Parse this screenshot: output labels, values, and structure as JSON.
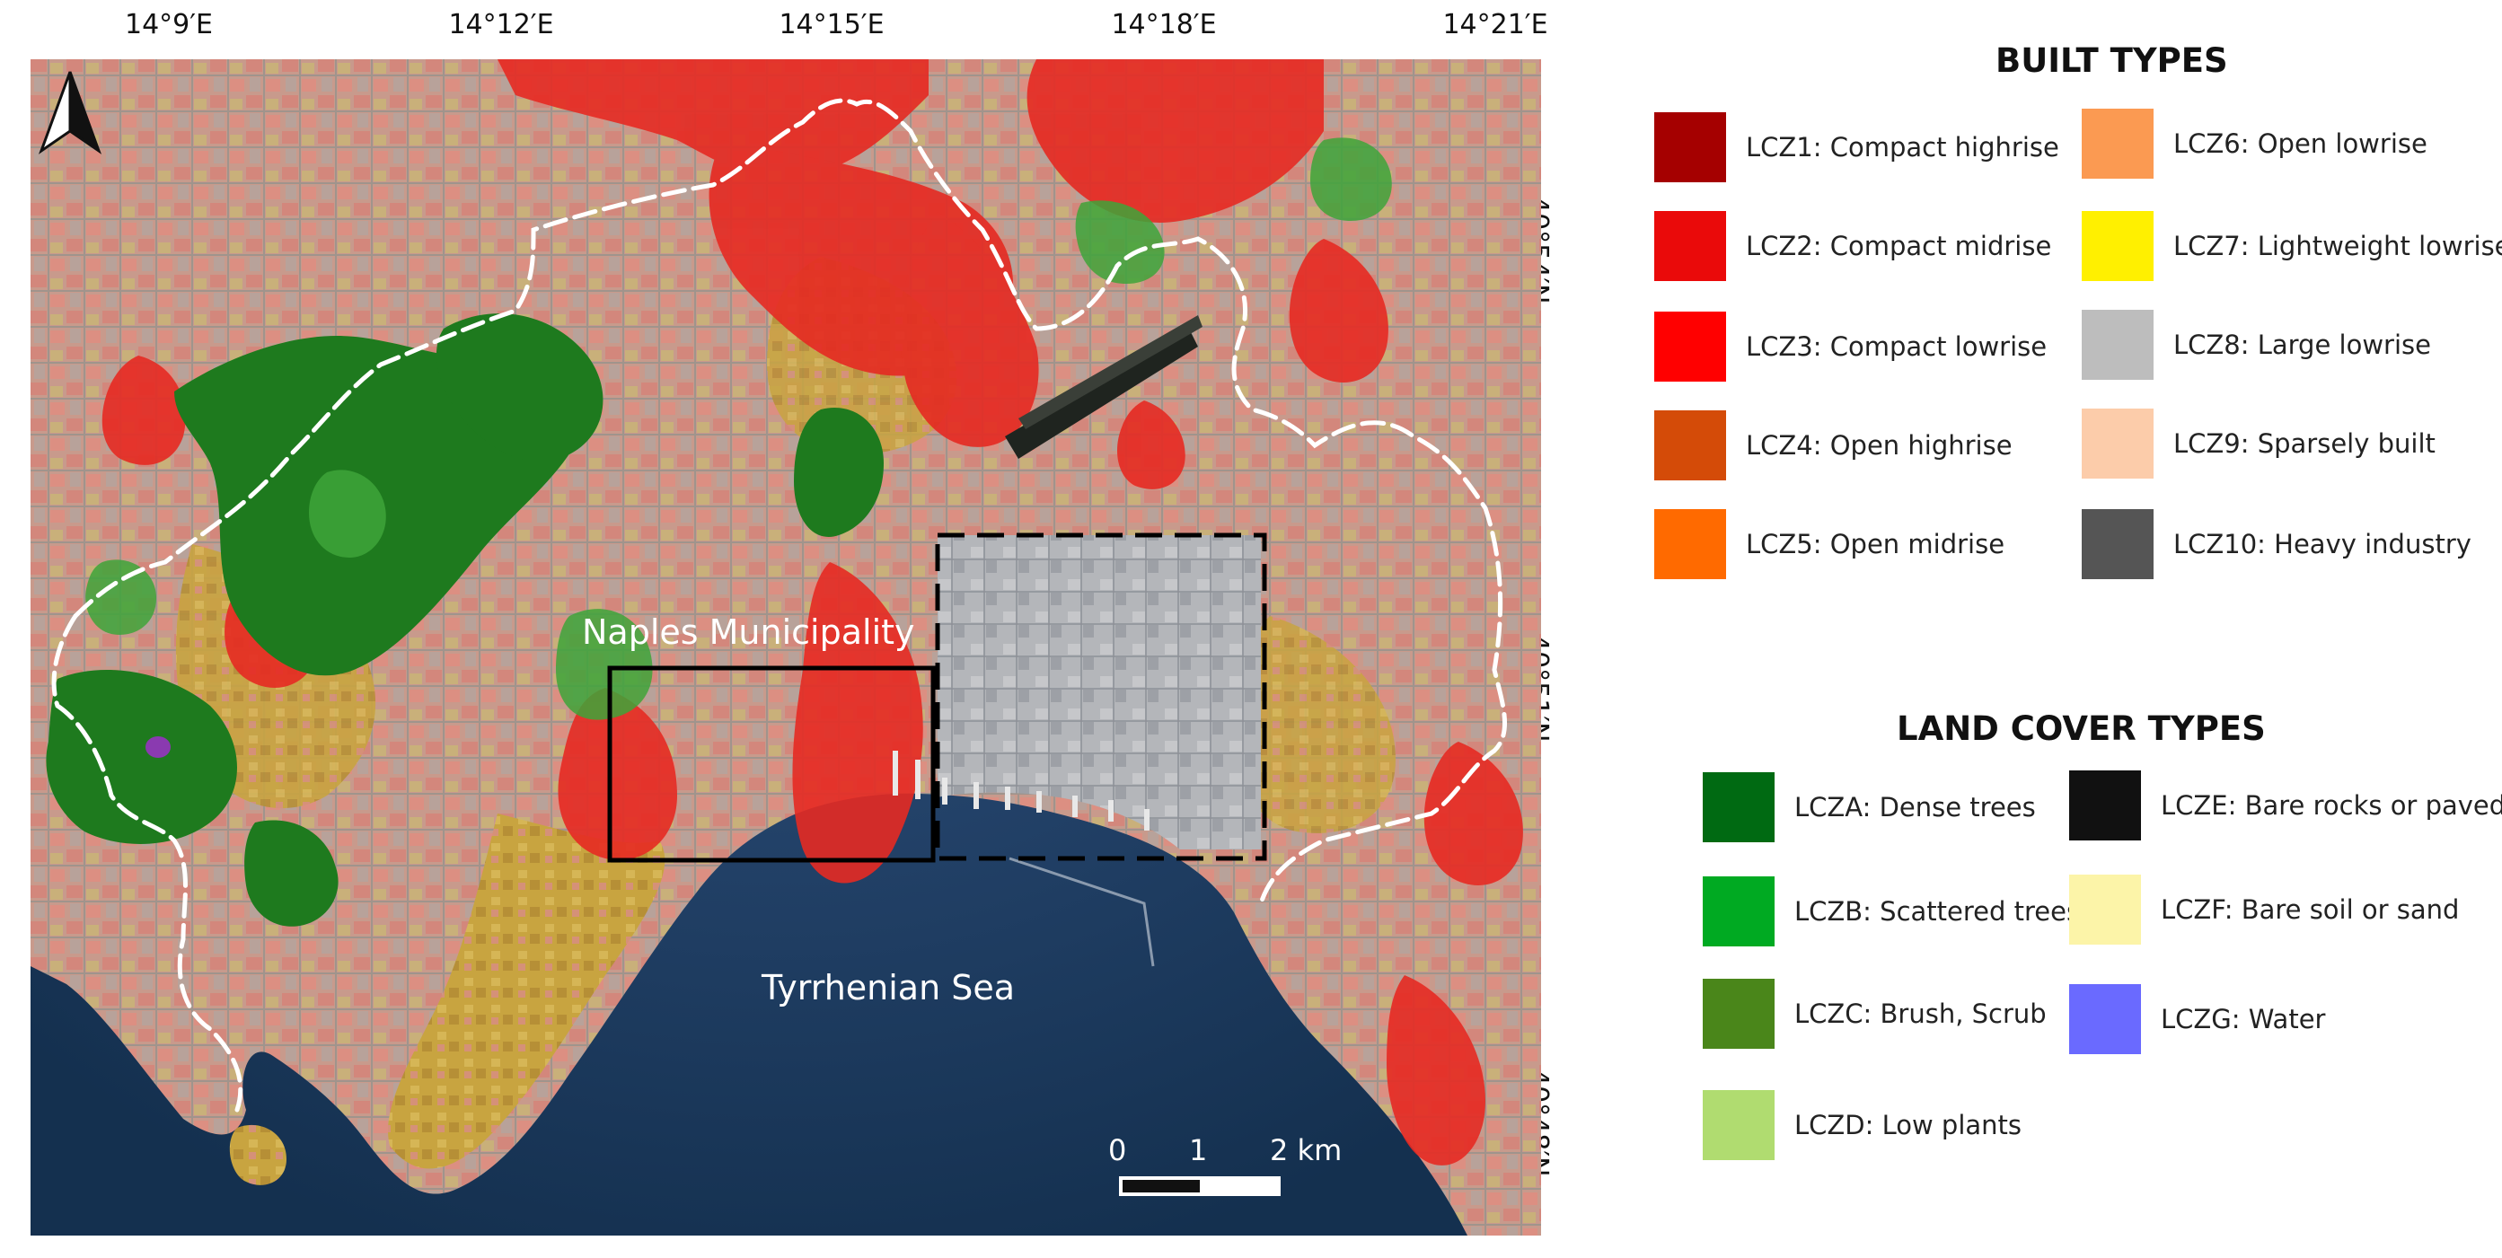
{
  "coords": {
    "top": [
      "14°9′E",
      "14°12′E",
      "14°15′E",
      "14°18′E",
      "14°21′E"
    ],
    "right": [
      "40°54′N",
      "40°51′N",
      "40°48′N"
    ]
  },
  "map_labels": {
    "municipality": "Naples Municipality",
    "sea": "Tyrrhenian Sea"
  },
  "scale_bar": {
    "labels": [
      "0",
      "1",
      "2 km"
    ]
  },
  "legend": {
    "built_title": "BUILT TYPES",
    "built_items": [
      {
        "label": "LCZ1: Compact highrise",
        "color": "#a50000"
      },
      {
        "label": "LCZ2: Compact midrise",
        "color": "#ea0a0a"
      },
      {
        "label": "LCZ3: Compact lowrise",
        "color": "#ff0000"
      },
      {
        "label": "LCZ4: Open highrise",
        "color": "#d44b08"
      },
      {
        "label": "LCZ5: Open midrise",
        "color": "#ff6a00"
      },
      {
        "label": "LCZ6: Open lowrise",
        "color": "#fb9a52"
      },
      {
        "label": "LCZ7: Lightweight lowrise",
        "color": "#fff000"
      },
      {
        "label": "LCZ8: Large lowrise",
        "color": "#bdbdbd"
      },
      {
        "label": "LCZ9: Sparsely built",
        "color": "#fcccaa"
      },
      {
        "label": "LCZ10: Heavy industry",
        "color": "#555555"
      }
    ],
    "land_title": "LAND COVER TYPES",
    "land_items": [
      {
        "label": "LCZA: Dense trees",
        "color": "#006a12"
      },
      {
        "label": "LCZB: Scattered trees",
        "color": "#00aa22"
      },
      {
        "label": "LCZC: Brush, Scrub",
        "color": "#4a861a"
      },
      {
        "label": "LCZD: Low plants",
        "color": "#b0dc70"
      },
      {
        "label": "LCZE: Bare rocks or paved",
        "color": "#111111"
      },
      {
        "label": "LCZF: Bare soil or sand",
        "color": "#fcf4a8"
      },
      {
        "label": "LCZG: Water",
        "color": "#6a6aff"
      }
    ]
  }
}
